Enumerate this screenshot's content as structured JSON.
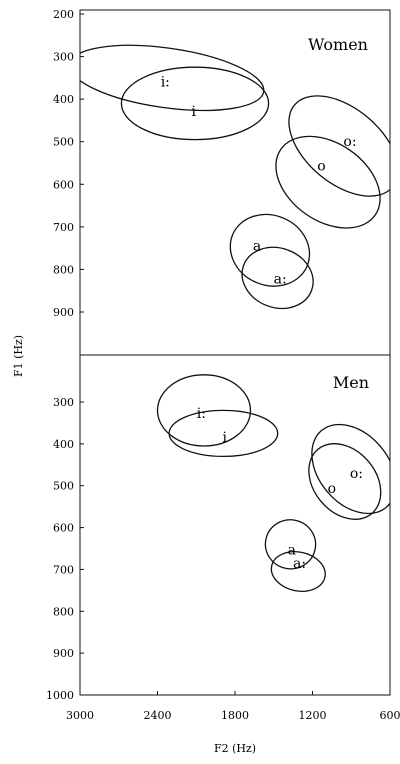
{
  "chart_data": {
    "type": "scatter",
    "title": "",
    "xlabel": "F2 (Hz)",
    "ylabel": "F1 (Hz)",
    "x_reversed": true,
    "xlim": [
      3000,
      600
    ],
    "x_ticks": [
      3000,
      2400,
      1800,
      1200,
      600
    ],
    "panels": [
      {
        "name": "Women",
        "ylim": [
          200,
          1000
        ],
        "y_ticks": [
          200,
          300,
          400,
          500,
          600,
          700,
          800,
          900
        ],
        "ellipses": [
          {
            "label": "i:",
            "cx": 2330,
            "cy": 350,
            "rx": 760,
            "ry": 70,
            "angle": 8
          },
          {
            "label": "i",
            "cx": 2110,
            "cy": 410,
            "rx": 570,
            "ry": 85,
            "angle": 0
          },
          {
            "label": "o:",
            "cx": 960,
            "cy": 510,
            "rx": 290,
            "ry": 150,
            "angle": -50
          },
          {
            "label": "o",
            "cx": 1080,
            "cy": 595,
            "rx": 300,
            "ry": 135,
            "angle": -55
          },
          {
            "label": "a",
            "cx": 1530,
            "cy": 755,
            "rx": 270,
            "ry": 95,
            "angle": -67
          },
          {
            "label": "a:",
            "cx": 1470,
            "cy": 820,
            "rx": 230,
            "ry": 85,
            "angle": -70
          }
        ],
        "labels": [
          {
            "text": "i:",
            "x": 2340,
            "y": 370
          },
          {
            "text": "i",
            "x": 2120,
            "y": 440
          },
          {
            "text": "o:",
            "x": 910,
            "y": 510
          },
          {
            "text": "o",
            "x": 1130,
            "y": 568
          },
          {
            "text": "a",
            "x": 1630,
            "y": 755
          },
          {
            "text": "a:",
            "x": 1450,
            "y": 833
          }
        ]
      },
      {
        "name": "Men",
        "ylim": [
          200,
          1000
        ],
        "y_ticks": [
          300,
          400,
          500,
          600,
          700,
          800,
          900,
          1000
        ],
        "ellipses": [
          {
            "label": "i:",
            "cx": 2040,
            "cy": 320,
            "rx": 360,
            "ry": 85,
            "angle": 0
          },
          {
            "label": "i",
            "cx": 1890,
            "cy": 375,
            "rx": 420,
            "ry": 55,
            "angle": 0
          },
          {
            "label": "o:",
            "cx": 880,
            "cy": 460,
            "rx": 270,
            "ry": 120,
            "angle": -40
          },
          {
            "label": "o",
            "cx": 950,
            "cy": 490,
            "rx": 240,
            "ry": 100,
            "angle": -40
          },
          {
            "label": "a",
            "cx": 1370,
            "cy": 640,
            "rx": 190,
            "ry": 60,
            "angle": -78
          },
          {
            "label": "a:",
            "cx": 1310,
            "cy": 705,
            "rx": 150,
            "ry": 65,
            "angle": -78
          }
        ],
        "labels": [
          {
            "text": "i:",
            "x": 2060,
            "y": 338
          },
          {
            "text": "i",
            "x": 1880,
            "y": 396
          },
          {
            "text": "o:",
            "x": 860,
            "y": 482
          },
          {
            "text": "o",
            "x": 1050,
            "y": 517
          },
          {
            "text": "a",
            "x": 1360,
            "y": 664
          },
          {
            "text": "a:",
            "x": 1300,
            "y": 696
          }
        ]
      }
    ]
  }
}
